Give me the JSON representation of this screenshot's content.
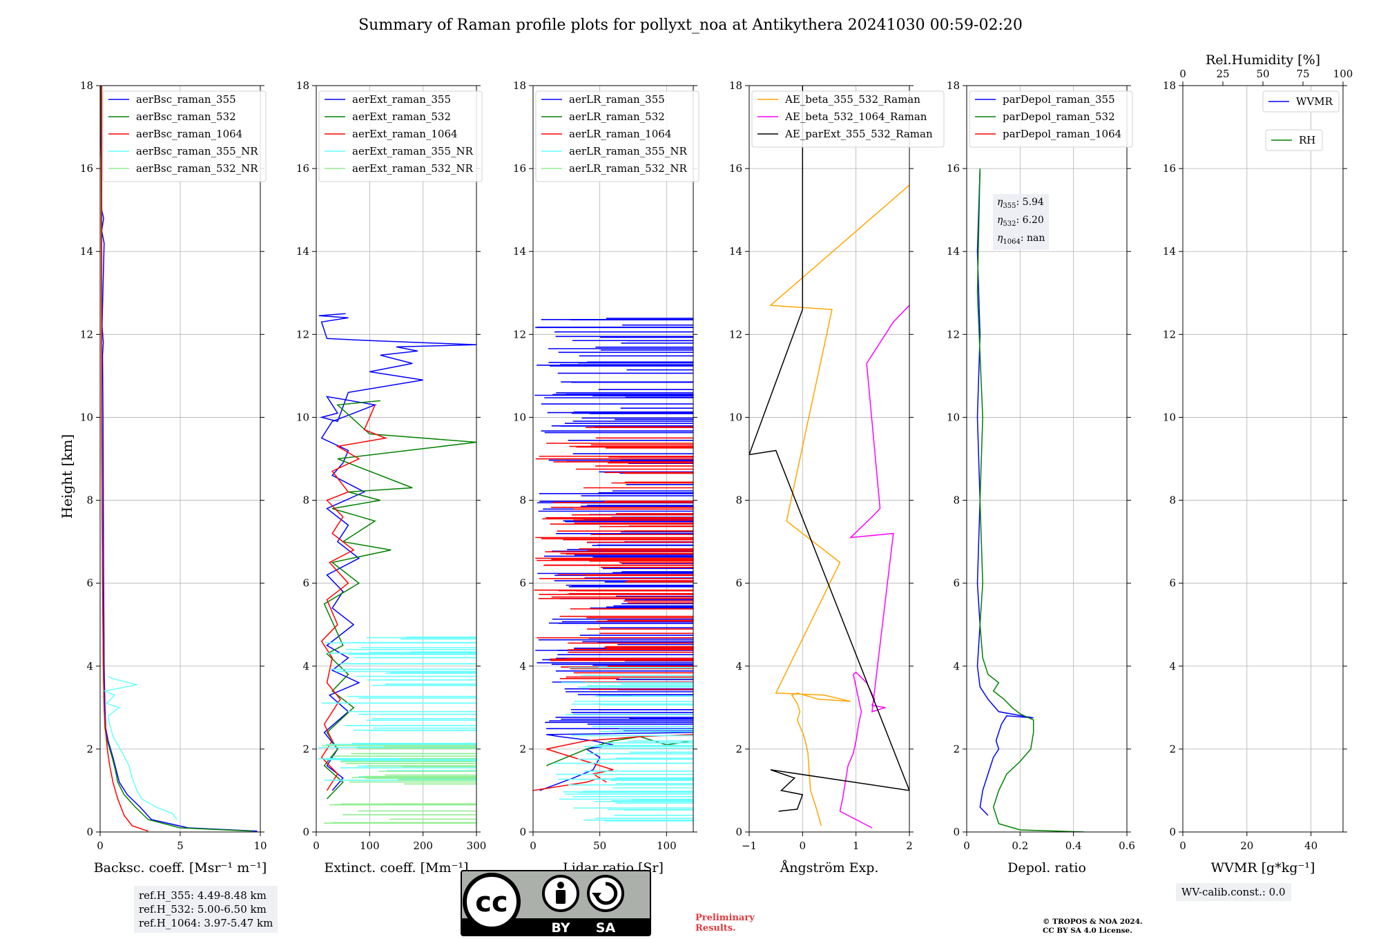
{
  "title": "Summary of Raman profile plots for pollyxt_noa at Antikythera 20241030 00:59-02:20",
  "y_label": "Height [km]",
  "chart_data": [
    {
      "type": "line",
      "xlabel": "Backsc. coeff. [Msr⁻¹ m⁻¹]",
      "xlim": [
        0,
        10
      ],
      "ylim": [
        0,
        18
      ],
      "xticks": [
        0,
        5,
        10
      ],
      "yticks": [
        0,
        2,
        4,
        6,
        8,
        10,
        12,
        14,
        16,
        18
      ],
      "grid": true,
      "legend": "upper-left",
      "series": [
        {
          "name": "aerBsc_raman_355",
          "color": "#0000ff",
          "x": [
            9.8,
            5.5,
            3.2,
            2.5,
            1.7,
            1.2,
            1.0,
            0.8,
            0.5,
            0.35,
            0.3,
            0.25,
            0.22,
            0.2,
            0.18,
            0.15,
            0.2,
            0.12,
            0.25,
            0.1,
            0.22,
            0.1,
            0.08,
            0.05,
            0.05,
            0.05
          ],
          "y": [
            0.02,
            0.1,
            0.3,
            0.6,
            0.9,
            1.2,
            1.5,
            1.8,
            2.2,
            2.5,
            3.0,
            4.0,
            6.0,
            8.0,
            10.0,
            11.5,
            11.8,
            12.2,
            14.2,
            14.5,
            14.8,
            15.0,
            16.0,
            16.6,
            17.5,
            18.0
          ]
        },
        {
          "name": "aerBsc_raman_532",
          "color": "#008000",
          "x": [
            9.5,
            5.0,
            3.0,
            2.2,
            1.5,
            1.1,
            0.95,
            0.75,
            0.45,
            0.3,
            0.25,
            0.2,
            0.15,
            0.12,
            0.1,
            0.08,
            0.06
          ],
          "y": [
            0.02,
            0.1,
            0.3,
            0.6,
            0.9,
            1.2,
            1.5,
            1.8,
            2.2,
            2.5,
            3.0,
            4.0,
            6.0,
            8.0,
            10.0,
            14.0,
            18.0
          ]
        },
        {
          "name": "aerBsc_raman_1064",
          "color": "#ff0000",
          "x": [
            3.0,
            2.0,
            1.5,
            1.1,
            0.8,
            0.6,
            0.45,
            0.35,
            0.25,
            0.2,
            0.15,
            0.1,
            0.1
          ],
          "y": [
            0.02,
            0.15,
            0.4,
            0.8,
            1.2,
            1.6,
            2.0,
            2.4,
            3.0,
            4.0,
            6.0,
            10.0,
            18.0
          ]
        },
        {
          "name": "aerBsc_raman_355_NR",
          "color": "#66ffff",
          "x": [
            4.8,
            4.5,
            3.5,
            2.6,
            2.3,
            2.0,
            1.8,
            1.4,
            1.1,
            0.8,
            0.6,
            0.5,
            1.2,
            0.4,
            0.9,
            0.3,
            2.3,
            0.8,
            0.5
          ],
          "y": [
            0.3,
            0.45,
            0.6,
            0.8,
            1.0,
            1.3,
            1.6,
            1.9,
            2.1,
            2.3,
            2.6,
            2.8,
            3.0,
            3.1,
            3.3,
            3.4,
            3.55,
            3.7,
            3.75
          ]
        },
        {
          "name": "aerBsc_raman_532_NR",
          "color": "#90ee90",
          "x": [],
          "y": []
        }
      ]
    },
    {
      "type": "line",
      "xlabel": "Extinct. coeff. [Mm⁻¹]",
      "xlim": [
        0,
        300
      ],
      "ylim": [
        0,
        18
      ],
      "xticks": [
        0,
        100,
        200,
        300
      ],
      "yticks": [
        0,
        2,
        4,
        6,
        8,
        10,
        12,
        14,
        16,
        18
      ],
      "grid": true,
      "legend": "upper-left",
      "series": [
        {
          "name": "aerExt_raman_355",
          "color": "#0000ff",
          "x": [
            30,
            50,
            20,
            40,
            15,
            60,
            25,
            80,
            30,
            60,
            20,
            70,
            30,
            50,
            20,
            80,
            40,
            60,
            20,
            90,
            30,
            50,
            60,
            10,
            30,
            110,
            20,
            40,
            10,
            40,
            60,
            200,
            100,
            180,
            120,
            190,
            150,
            300,
            100,
            20,
            10,
            60,
            5,
            55
          ],
          "y": [
            1.0,
            1.3,
            1.6,
            2.0,
            2.4,
            2.9,
            3.3,
            3.6,
            3.9,
            4.2,
            4.5,
            5.0,
            5.4,
            5.8,
            6.2,
            6.6,
            7.0,
            7.4,
            7.8,
            8.2,
            8.6,
            8.9,
            9.2,
            9.5,
            9.9,
            10.3,
            10.5,
            10.1,
            10.0,
            9.9,
            10.6,
            10.9,
            11.1,
            11.3,
            11.5,
            11.6,
            11.7,
            11.75,
            11.85,
            11.9,
            12.3,
            12.4,
            12.45,
            12.5
          ]
        },
        {
          "name": "aerExt_raman_532",
          "color": "#008000",
          "x": [
            20,
            50,
            15,
            40,
            20,
            70,
            30,
            60,
            20,
            50,
            15,
            80,
            30,
            140,
            50,
            110,
            30,
            120,
            60,
            180,
            40,
            300,
            100,
            40,
            120
          ],
          "y": [
            0.8,
            1.2,
            1.6,
            2.0,
            2.4,
            3.0,
            3.4,
            3.8,
            4.3,
            4.5,
            5.5,
            6.0,
            6.5,
            6.8,
            7.0,
            7.5,
            7.8,
            8.0,
            8.2,
            8.3,
            9.0,
            9.4,
            9.6,
            10.3,
            10.4
          ]
        },
        {
          "name": "aerExt_raman_1064",
          "color": "#ff0000",
          "x": [
            20,
            40,
            10,
            30,
            15,
            45,
            20,
            30,
            10,
            40,
            20,
            60,
            25,
            70,
            30,
            50,
            20,
            60,
            30,
            80,
            40,
            130,
            90,
            110
          ],
          "y": [
            1.0,
            1.4,
            1.8,
            2.2,
            2.6,
            3.2,
            3.6,
            4.2,
            4.6,
            5.0,
            5.6,
            6.0,
            6.5,
            6.8,
            7.2,
            7.6,
            8.0,
            8.2,
            8.7,
            9.0,
            9.3,
            9.5,
            9.7,
            10.3
          ]
        },
        {
          "name": "aerExt_raman_355_NR",
          "color": "#66ffff",
          "band": [
            1.2,
            4.7
          ],
          "x_range": [
            0,
            300
          ]
        },
        {
          "name": "aerExt_raman_532_NR",
          "color": "#90ee90",
          "band": [
            0.2,
            2.1
          ],
          "x_range": [
            0,
            300
          ]
        }
      ]
    },
    {
      "type": "line",
      "xlabel": "Lidar ratio [Sr]",
      "xlim": [
        0,
        120
      ],
      "ylim": [
        0,
        18
      ],
      "xticks": [
        0,
        50,
        100
      ],
      "yticks": [
        0,
        2,
        4,
        6,
        8,
        10,
        12,
        14,
        16,
        18
      ],
      "grid": true,
      "legend": "upper-left",
      "series": [
        {
          "name": "aerLR_raman_355",
          "color": "#0000ff",
          "x": [
            5,
            30,
            45,
            50,
            40,
            60,
            45,
            20,
            10,
            120
          ],
          "y": [
            1.0,
            1.3,
            1.5,
            1.8,
            2.0,
            2.1,
            2.2,
            2.3,
            2.35,
            2.4
          ],
          "band": [
            2.4,
            12.45
          ]
        },
        {
          "name": "aerLR_raman_532",
          "color": "#008000",
          "x": [
            10,
            40,
            60,
            80,
            100,
            120
          ],
          "y": [
            1.6,
            2.0,
            2.2,
            2.3,
            2.1,
            2.2
          ]
        },
        {
          "name": "aerLR_raman_1064",
          "color": "#ff0000",
          "x": [
            0,
            20,
            40,
            50,
            55,
            45,
            60,
            40,
            20,
            10,
            40,
            80,
            120
          ],
          "y": [
            1.0,
            1.1,
            1.2,
            1.3,
            1.2,
            1.4,
            1.5,
            1.7,
            1.9,
            2.0,
            2.2,
            2.3,
            2.35
          ],
          "band": [
            3.4,
            9.8
          ]
        },
        {
          "name": "aerLR_raman_355_NR",
          "color": "#66ffff",
          "band": [
            0.2,
            4.0
          ],
          "x_range": [
            15,
            120
          ]
        },
        {
          "name": "aerLR_raman_532_NR",
          "color": "#90ee90",
          "x": [],
          "y": []
        }
      ]
    },
    {
      "type": "line",
      "xlabel": "Ångström Exp.",
      "xlim": [
        -1,
        2
      ],
      "ylim": [
        0,
        18
      ],
      "xticks": [
        -1,
        0,
        1,
        2
      ],
      "yticks": [
        0,
        2,
        4,
        6,
        8,
        10,
        12,
        14,
        16,
        18
      ],
      "grid": true,
      "legend": "upper-left",
      "series": [
        {
          "name": "AE_beta_355_532_Raman",
          "color": "#ffa500",
          "x": [
            0.35,
            0.25,
            0.15,
            0.12,
            0.1,
            0.05,
            0.0,
            -0.1,
            -0.05,
            -0.1,
            -0.2,
            -0.1,
            0.3,
            0.9,
            0.4,
            -0.5,
            0.7,
            -0.3,
            0.55,
            -0.6,
            2.0
          ],
          "y": [
            0.15,
            0.6,
            1.0,
            1.5,
            1.9,
            2.2,
            2.4,
            2.7,
            2.9,
            3.1,
            3.3,
            3.35,
            3.2,
            3.15,
            3.3,
            3.35,
            6.5,
            7.5,
            12.6,
            12.7,
            15.6
          ]
        },
        {
          "name": "AE_beta_532_1064_Raman",
          "color": "#ff00ff",
          "x": [
            1.3,
            0.7,
            0.75,
            0.8,
            0.85,
            0.95,
            1.0,
            1.05,
            1.1,
            1.05,
            1.0,
            0.95,
            1.0,
            1.2,
            1.35,
            1.3,
            1.55,
            1.3,
            1.7,
            0.9,
            1.3,
            1.45,
            1.2,
            1.7,
            2.0
          ],
          "y": [
            0.1,
            0.5,
            0.8,
            1.2,
            1.6,
            1.9,
            2.2,
            2.6,
            2.9,
            3.2,
            3.5,
            3.8,
            3.85,
            3.6,
            3.2,
            3.05,
            3.0,
            2.9,
            7.2,
            7.1,
            7.6,
            7.8,
            11.3,
            12.3,
            12.7
          ]
        },
        {
          "name": "AE_parExt_355_532_Raman",
          "color": "#000000",
          "x": [
            -0.45,
            -0.1,
            0.0,
            -0.4,
            -0.15,
            -0.6,
            2.0,
            -0.5,
            -1.0,
            0.0,
            0.0
          ],
          "y": [
            0.5,
            0.55,
            0.9,
            1.0,
            1.3,
            1.5,
            1.0,
            9.2,
            9.1,
            12.6,
            18.0
          ]
        }
      ]
    },
    {
      "type": "line",
      "xlabel": "Depol. ratio",
      "xlim": [
        0,
        0.6
      ],
      "ylim": [
        0,
        18
      ],
      "xticks": [
        0.0,
        0.2,
        0.4,
        0.6
      ],
      "yticks": [
        0,
        2,
        4,
        6,
        8,
        10,
        12,
        14,
        16,
        18
      ],
      "grid": true,
      "legend": "upper-left",
      "series": [
        {
          "name": "parDepol_raman_355",
          "color": "#0000ff",
          "x": [
            0.08,
            0.05,
            0.06,
            0.08,
            0.1,
            0.12,
            0.11,
            0.12,
            0.13,
            0.14,
            0.15,
            0.25,
            0.12,
            0.08,
            0.05,
            0.04,
            0.05,
            0.04,
            0.05,
            0.04,
            0.05,
            0.04,
            0.05
          ],
          "y": [
            0.4,
            0.6,
            1.0,
            1.4,
            1.8,
            2.0,
            2.2,
            2.4,
            2.6,
            2.7,
            2.8,
            2.75,
            2.9,
            3.2,
            3.5,
            4.0,
            5.0,
            6.0,
            8.0,
            10.0,
            12.0,
            14.0,
            16.0
          ]
        },
        {
          "name": "parDepol_raman_532",
          "color": "#008000",
          "x": [
            0.44,
            0.2,
            0.12,
            0.1,
            0.12,
            0.15,
            0.2,
            0.24,
            0.25,
            0.25,
            0.2,
            0.17,
            0.14,
            0.1,
            0.12,
            0.08,
            0.06,
            0.05,
            0.06,
            0.05,
            0.06,
            0.04,
            0.05
          ],
          "y": [
            0.0,
            0.05,
            0.2,
            0.6,
            1.0,
            1.4,
            1.7,
            2.0,
            2.4,
            2.7,
            2.85,
            3.0,
            3.2,
            3.4,
            3.6,
            3.8,
            4.2,
            5.0,
            6.0,
            8.0,
            10.0,
            13.0,
            16.0
          ]
        },
        {
          "name": "parDepol_raman_1064",
          "color": "#ff0000",
          "x": [],
          "y": []
        }
      ]
    },
    {
      "type": "line",
      "xlabel": "WVMR [g*kg⁻¹]",
      "top_xlabel": "Rel.Humidity [%]",
      "xlim": [
        0,
        50
      ],
      "ylim": [
        0,
        18
      ],
      "xticks": [
        0,
        20,
        40
      ],
      "top_xticks": [
        0,
        25,
        50,
        75,
        100
      ],
      "yticks": [
        0,
        2,
        4,
        6,
        8,
        10,
        12,
        14,
        16,
        18
      ],
      "grid": true,
      "series": [
        {
          "name": "WVMR",
          "color": "#0000ff",
          "x": [],
          "y": []
        },
        {
          "name": "RH",
          "color": "#008000",
          "x": [],
          "y": []
        }
      ]
    }
  ],
  "eta": {
    "e355": "5.94",
    "e532": "6.20",
    "e1064": "nan"
  },
  "ref_heights": [
    "ref.H_355: 4.49-8.48 km",
    "ref.H_532: 5.00-6.50 km",
    "ref.H_1064: 3.97-5.47 km"
  ],
  "wv_calib": "WV-calib.const.: 0.0",
  "license_logo": {
    "by": "BY",
    "sa": "SA",
    "cc": "cc"
  },
  "preliminary": [
    "Preliminary",
    "Results."
  ],
  "copyright": [
    "© TROPOS & NOA 2024.",
    "CC BY SA 4.0 License."
  ]
}
